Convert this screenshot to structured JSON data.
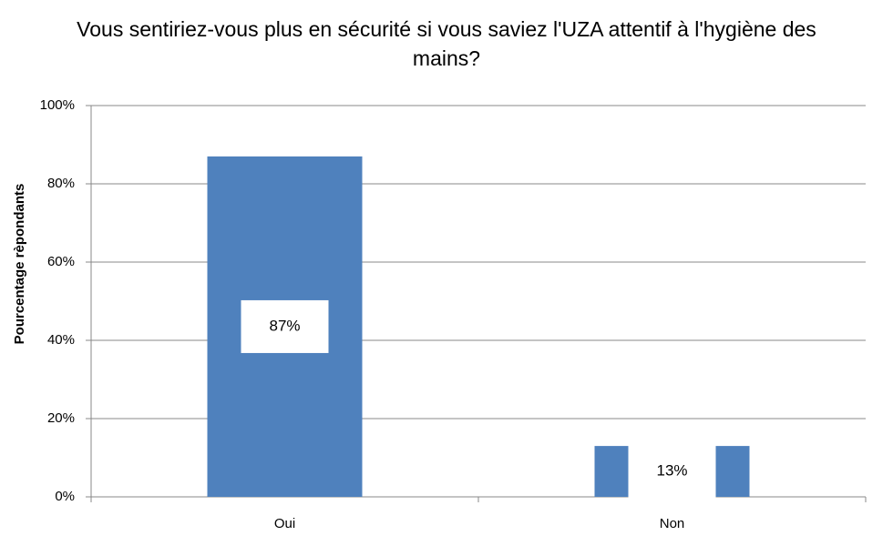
{
  "chart_data": {
    "type": "bar",
    "title": "Vous sentiriez-vous plus en sécurité si vous saviez l'UZA attentif à l'hygiène des mains?",
    "y_label": "Pourcentage rèpondants",
    "categories": [
      "Oui",
      "Non"
    ],
    "values": [
      87,
      13
    ],
    "value_labels": [
      "87%",
      "13%"
    ],
    "color": "#4f81bd",
    "ylim": [
      0,
      100
    ],
    "yticks": [
      {
        "value": 0,
        "label": "0%"
      },
      {
        "value": 20,
        "label": "20%"
      },
      {
        "value": 40,
        "label": "40%"
      },
      {
        "value": 60,
        "label": "60%"
      },
      {
        "value": 80,
        "label": "80%"
      },
      {
        "value": 100,
        "label": "100%"
      }
    ],
    "grid": true
  }
}
